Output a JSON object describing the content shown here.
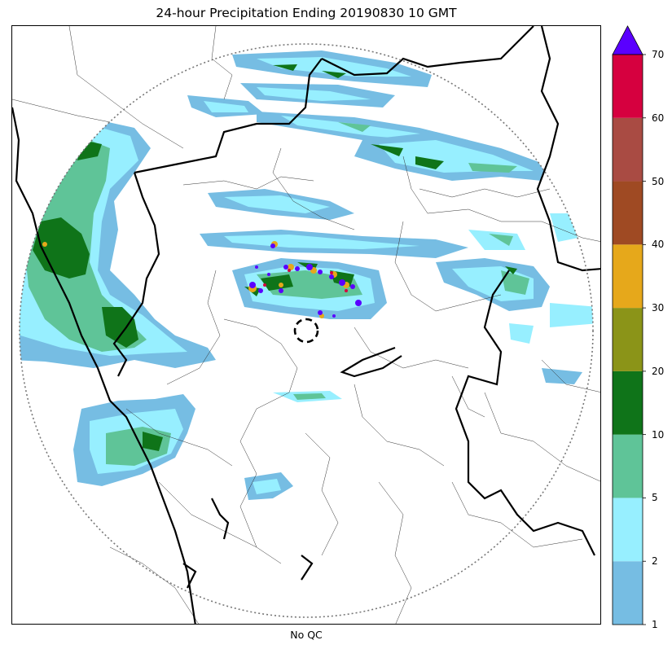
{
  "title": "24-hour Precipitation Ending 20190830 10 GMT",
  "xlabel": "No QC",
  "colorbar": {
    "units": "",
    "ticks": [
      "1",
      "2",
      "5",
      "10",
      "20",
      "30",
      "40",
      "50",
      "60",
      "70"
    ],
    "bins": [
      {
        "from": 1,
        "to": 2,
        "color": "#76bde3"
      },
      {
        "from": 2,
        "to": 5,
        "color": "#97efff"
      },
      {
        "from": 5,
        "to": 10,
        "color": "#5fc498"
      },
      {
        "from": 10,
        "to": 20,
        "color": "#0f7419"
      },
      {
        "from": 20,
        "to": 30,
        "color": "#8b9418"
      },
      {
        "from": 30,
        "to": 40,
        "color": "#e6a81b"
      },
      {
        "from": 40,
        "to": 50,
        "color": "#9f4a23"
      },
      {
        "from": 50,
        "to": 60,
        "color": "#a94b43"
      },
      {
        "from": 60,
        "to": 70,
        "color": "#d6003f"
      }
    ],
    "extend_color": "#5a00ff",
    "extend": "max"
  },
  "map": {
    "radar_range_ring": "dotted",
    "radar_site_marker": "dashed-circle",
    "boundaries": [
      "state",
      "district"
    ]
  }
}
